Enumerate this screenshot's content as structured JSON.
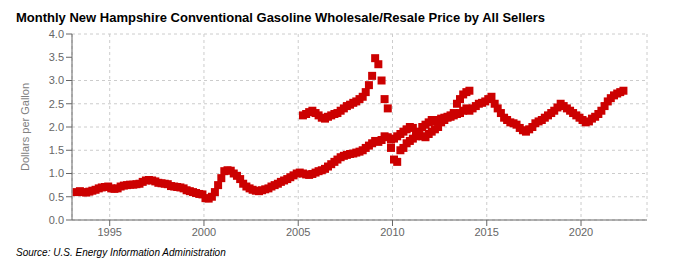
{
  "chart_data": {
    "type": "scatter",
    "title": "Monthly New Hampshire Conventional Gasoline Wholesale/Resale Price by All Sellers",
    "ylabel": "Dollars per Gallon",
    "annotations": [
      "Source: U.S. Energy Information Administration"
    ],
    "color": "#CC0000",
    "marker": "square",
    "grid": true,
    "xlim": [
      1993.0,
      2023.5
    ],
    "ylim": [
      0.0,
      4.0
    ],
    "xticks": [
      1995,
      2000,
      2005,
      2010,
      2015,
      2020
    ],
    "yticks": [
      {
        "value": 0.0,
        "label": "0.0"
      },
      0.5,
      {
        "value": 1.0,
        "label": "1.0"
      },
      1.5,
      {
        "value": 2.0,
        "label": "2.0"
      },
      2.5,
      {
        "value": 3.0,
        "label": "3.0"
      },
      3.5,
      {
        "value": 4.0,
        "label": "4.0"
      }
    ],
    "x": [
      1993.25,
      1993.42,
      1993.58,
      1993.75,
      1993.92,
      1994.08,
      1994.25,
      1994.42,
      1994.58,
      1994.75,
      1994.92,
      1995.08,
      1995.25,
      1995.42,
      1995.58,
      1995.75,
      1995.92,
      1996.08,
      1996.25,
      1996.42,
      1996.58,
      1996.75,
      1996.92,
      1997.08,
      1997.25,
      1997.42,
      1997.58,
      1997.75,
      1997.92,
      1998.08,
      1998.25,
      1998.42,
      1998.58,
      1998.75,
      1998.92,
      1999.08,
      1999.25,
      1999.42,
      1999.58,
      1999.75,
      1999.92,
      2000.08,
      2000.25,
      2000.42,
      2000.58,
      2000.75,
      2000.92,
      2001.08,
      2001.25,
      2001.42,
      2001.58,
      2001.75,
      2001.92,
      2002.08,
      2002.25,
      2002.42,
      2002.58,
      2002.75,
      2002.92,
      2003.08,
      2003.25,
      2003.42,
      2003.58,
      2003.75,
      2003.92,
      2004.08,
      2004.25,
      2004.42,
      2004.58,
      2004.75,
      2004.92,
      2005.08,
      2005.25,
      2005.42,
      2005.58,
      2005.75,
      2005.92,
      2006.08,
      2006.25,
      2006.42,
      2006.58,
      2006.75,
      2006.92,
      2007.08,
      2007.25,
      2007.42,
      2007.58,
      2007.75,
      2007.92,
      2008.08,
      2008.25,
      2008.42,
      2008.58,
      2008.75,
      2008.92,
      2009.08,
      2009.25,
      2009.42,
      2009.58,
      2009.75,
      2009.92,
      2010.08,
      2010.25,
      2010.42,
      2010.58,
      2010.75,
      2010.92,
      2011.08,
      2011.25,
      2011.42,
      2011.58,
      2011.75,
      2011.92,
      2012.08,
      2012.25,
      2012.42,
      2012.58,
      2012.75,
      2012.92,
      2013.08,
      2013.25,
      2013.42,
      2013.58,
      2013.75,
      2013.92,
      2014.08,
      2014.25,
      2014.42,
      2014.58,
      2014.75,
      2014.92,
      2015.08,
      2015.25,
      2015.42,
      2015.58,
      2015.75,
      2015.92,
      2016.08,
      2016.25,
      2016.42,
      2016.58,
      2016.75,
      2016.92,
      2017.08,
      2017.25,
      2017.42,
      2017.58,
      2017.75,
      2017.92,
      2018.08,
      2018.25,
      2018.42,
      2018.58,
      2018.75,
      2018.92,
      2019.08,
      2019.25,
      2019.42,
      2019.58,
      2019.75,
      2019.92,
      2020.08,
      2020.25,
      2020.42,
      2020.58,
      2020.75,
      2020.92,
      2021.08,
      2021.25,
      2021.42,
      2021.58,
      2021.75,
      2021.92,
      2022.08,
      2022.25,
      2005.25,
      2005.42,
      2005.58,
      2005.75,
      2005.92,
      2006.08,
      2006.25,
      2006.42,
      2006.58,
      2006.75,
      2006.92,
      2007.08,
      2007.25,
      2007.42,
      2007.58,
      2007.75,
      2007.92,
      2008.08,
      2008.25,
      2008.42,
      2008.58,
      2008.75,
      2008.92,
      2009.08,
      2009.25,
      2009.42,
      2009.58,
      2009.75,
      2009.92,
      2010.08,
      2010.25,
      2010.42,
      2010.58,
      2010.75,
      2010.92,
      2011.08,
      2011.25,
      2011.42,
      2011.58,
      2011.75,
      2011.92,
      2012.08,
      2012.25,
      2012.42,
      2012.58,
      2012.75,
      2012.92,
      2013.08,
      2013.25,
      2013.42,
      2013.58,
      2013.75,
      2013.92,
      2014.08
    ],
    "values": [
      0.6,
      0.62,
      0.6,
      0.59,
      0.61,
      0.63,
      0.65,
      0.68,
      0.7,
      0.71,
      0.72,
      0.68,
      0.67,
      0.68,
      0.72,
      0.74,
      0.75,
      0.76,
      0.76,
      0.77,
      0.78,
      0.82,
      0.85,
      0.86,
      0.85,
      0.83,
      0.8,
      0.79,
      0.78,
      0.77,
      0.73,
      0.72,
      0.71,
      0.7,
      0.68,
      0.64,
      0.62,
      0.6,
      0.58,
      0.56,
      0.55,
      0.47,
      0.46,
      0.5,
      0.6,
      0.75,
      0.9,
      1.05,
      1.07,
      1.06,
      1.0,
      0.95,
      0.88,
      0.78,
      0.72,
      0.68,
      0.65,
      0.63,
      0.62,
      0.64,
      0.66,
      0.68,
      0.72,
      0.75,
      0.78,
      0.82,
      0.85,
      0.88,
      0.92,
      0.96,
      1.0,
      1.02,
      1.0,
      0.98,
      0.97,
      0.99,
      1.02,
      1.05,
      1.07,
      1.1,
      1.15,
      1.2,
      1.25,
      1.3,
      1.35,
      1.38,
      1.4,
      1.42,
      1.43,
      1.45,
      1.47,
      1.5,
      1.55,
      1.6,
      1.65,
      1.7,
      1.68,
      1.72,
      1.8,
      1.78,
      1.73,
      1.75,
      1.8,
      1.85,
      1.9,
      1.95,
      2.0,
      1.98,
      1.9,
      1.85,
      1.8,
      1.78,
      1.85,
      1.9,
      1.95,
      2.0,
      2.1,
      2.15,
      2.2,
      2.22,
      2.25,
      2.28,
      2.3,
      2.35,
      2.4,
      2.35,
      2.4,
      2.45,
      2.5,
      2.52,
      2.55,
      2.6,
      2.65,
      2.5,
      2.4,
      2.3,
      2.2,
      2.15,
      2.1,
      2.08,
      2.05,
      1.98,
      1.93,
      1.9,
      1.95,
      2.0,
      2.08,
      2.12,
      2.15,
      2.2,
      2.25,
      2.3,
      2.35,
      2.42,
      2.5,
      2.45,
      2.4,
      2.35,
      2.3,
      2.25,
      2.2,
      2.15,
      2.1,
      2.12,
      2.18,
      2.22,
      2.28,
      2.35,
      2.45,
      2.55,
      2.62,
      2.68,
      2.72,
      2.75,
      2.78,
      2.25,
      2.28,
      2.32,
      2.35,
      2.3,
      2.25,
      2.2,
      2.18,
      2.22,
      2.25,
      2.28,
      2.3,
      2.35,
      2.4,
      2.45,
      2.48,
      2.52,
      2.55,
      2.6,
      2.65,
      2.75,
      2.9,
      3.1,
      3.48,
      3.35,
      3.0,
      2.6,
      2.4,
      1.55,
      1.3,
      1.25,
      1.5,
      1.55,
      1.65,
      1.7,
      1.75,
      1.8,
      1.85,
      2.0,
      2.05,
      2.1,
      2.15,
      2.12,
      2.15,
      2.18,
      2.2,
      2.22,
      2.25,
      2.3,
      2.5,
      2.6,
      2.7,
      2.75,
      2.78
    ]
  }
}
